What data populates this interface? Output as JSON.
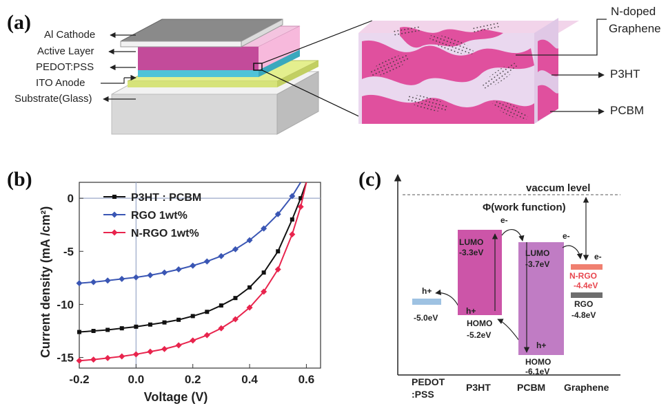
{
  "panel_a": {
    "label": "(a)",
    "layers": [
      "Al Cathode",
      "Active Layer",
      "PEDOT:PSS",
      "ITO Anode",
      "Substrate(Glass)"
    ],
    "zoom_labels": [
      "N-doped",
      "Graphene",
      "P3HT",
      "PCBM"
    ]
  },
  "panel_b": {
    "label": "(b)"
  },
  "chart_data": {
    "type": "line",
    "xlabel": "Voltage (V)",
    "ylabel": "Current density (mA /cm²)",
    "xlim": [
      -0.2,
      0.65
    ],
    "ylim": [
      -16,
      1.5
    ],
    "xticks": [
      "-0.2",
      "0.0",
      "0.2",
      "0.4",
      "0.6"
    ],
    "yticks": [
      "0",
      "-5",
      "-10",
      "-15"
    ],
    "legend_position": "top-left",
    "series": [
      {
        "name": "P3HT : PCBM",
        "color": "#111111",
        "marker": "square",
        "x": [
          -0.2,
          -0.15,
          -0.1,
          -0.05,
          0,
          0.05,
          0.1,
          0.15,
          0.2,
          0.25,
          0.3,
          0.35,
          0.4,
          0.45,
          0.5,
          0.55,
          0.58,
          0.6
        ],
        "y": [
          -12.6,
          -12.5,
          -12.4,
          -12.25,
          -12.1,
          -11.9,
          -11.7,
          -11.45,
          -11.1,
          -10.7,
          -10.1,
          -9.4,
          -8.4,
          -7.0,
          -5.0,
          -2.0,
          0.0,
          1.5
        ]
      },
      {
        "name": "RGO 1wt%",
        "color": "#3a56b4",
        "marker": "diamond",
        "x": [
          -0.2,
          -0.15,
          -0.1,
          -0.05,
          0,
          0.05,
          0.1,
          0.15,
          0.2,
          0.25,
          0.3,
          0.35,
          0.4,
          0.45,
          0.5,
          0.55,
          0.58
        ],
        "y": [
          -8.0,
          -7.9,
          -7.75,
          -7.6,
          -7.45,
          -7.25,
          -7.0,
          -6.7,
          -6.35,
          -5.95,
          -5.45,
          -4.8,
          -3.95,
          -2.85,
          -1.5,
          0.2,
          1.5
        ]
      },
      {
        "name": "N-RGO 1wt%",
        "color": "#e8244d",
        "marker": "diamond",
        "x": [
          -0.2,
          -0.15,
          -0.1,
          -0.05,
          0,
          0.05,
          0.1,
          0.15,
          0.2,
          0.25,
          0.3,
          0.35,
          0.4,
          0.45,
          0.5,
          0.55,
          0.58,
          0.6
        ],
        "y": [
          -15.3,
          -15.2,
          -15.05,
          -14.9,
          -14.7,
          -14.45,
          -14.2,
          -13.85,
          -13.4,
          -12.9,
          -12.25,
          -11.4,
          -10.3,
          -8.8,
          -6.7,
          -3.4,
          -0.8,
          1.5
        ]
      }
    ]
  },
  "panel_c": {
    "label": "(c)",
    "vacuum_label": "vaccum level",
    "work_function_label": "Φ(work function)",
    "columns": [
      "PEDOT",
      ":PSS",
      "P3HT",
      "PCBM",
      "Graphene"
    ],
    "pedot": {
      "level": "-5.0eV",
      "carrier": "h+"
    },
    "p3ht": {
      "lumo": "LUMO",
      "lumo_val": "-3.3eV",
      "homo": "HOMO",
      "homo_val": "-5.2eV",
      "electron": "e-",
      "hole": "h+"
    },
    "pcbm": {
      "lumo": "LUMO",
      "lumo_val": "-3.7eV",
      "homo": "HOMO",
      "homo_val": "-6.1eV",
      "electron": "e-",
      "hole": "h+"
    },
    "graphene": {
      "nrgo": "N-RGO",
      "nrgo_val": "-4.4eV",
      "rgo": "RGO",
      "rgo_val": "-4.8eV",
      "electron": "e-"
    },
    "colors": {
      "p3ht": "#cc55a8",
      "pcbm": "#c07cc4",
      "pedot": "#9ec2e2",
      "nrgo": "#f08070",
      "rgo": "#6e6e6e",
      "nrgo_text": "#e8464e"
    }
  }
}
